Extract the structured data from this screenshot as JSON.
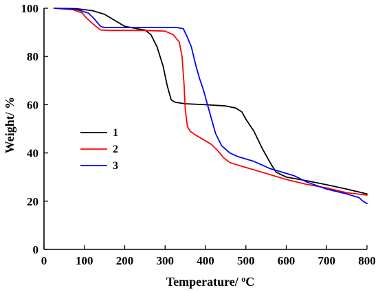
{
  "chart_data": {
    "type": "line",
    "xlabel": "Temperature/ ",
    "xlabel_unit_sup": "o",
    "xlabel_unit": "C",
    "ylabel": "Weight/ %",
    "xlim": [
      0,
      800
    ],
    "ylim": [
      0,
      100
    ],
    "x_ticks": [
      0,
      100,
      200,
      300,
      400,
      500,
      600,
      700,
      800
    ],
    "y_ticks": [
      0,
      20,
      40,
      60,
      80,
      100
    ],
    "x_tick_labels": [
      "0",
      "100",
      "200",
      "300",
      "400",
      "500",
      "600",
      "700",
      "800"
    ],
    "y_tick_labels": [
      "0",
      "20",
      "40",
      "60",
      "80",
      "100"
    ],
    "grid": false,
    "legend_position": "middle-left",
    "series": [
      {
        "name": "1",
        "color": "#000000",
        "points": [
          [
            25,
            100
          ],
          [
            80,
            99.8
          ],
          [
            120,
            99
          ],
          [
            150,
            97.5
          ],
          [
            175,
            95
          ],
          [
            200,
            92.5
          ],
          [
            230,
            91.5
          ],
          [
            250,
            91
          ],
          [
            265,
            89
          ],
          [
            280,
            84
          ],
          [
            295,
            76
          ],
          [
            305,
            68
          ],
          [
            315,
            62
          ],
          [
            325,
            61
          ],
          [
            350,
            60.4
          ],
          [
            400,
            60
          ],
          [
            450,
            59.5
          ],
          [
            475,
            58.6
          ],
          [
            490,
            57
          ],
          [
            500,
            54
          ],
          [
            520,
            49
          ],
          [
            540,
            42
          ],
          [
            560,
            36
          ],
          [
            575,
            32
          ],
          [
            600,
            30
          ],
          [
            650,
            28.5
          ],
          [
            700,
            26.8
          ],
          [
            750,
            25
          ],
          [
            800,
            23
          ]
        ]
      },
      {
        "name": "2",
        "color": "#ff0000",
        "points": [
          [
            25,
            100
          ],
          [
            70,
            99.5
          ],
          [
            95,
            98
          ],
          [
            105,
            96
          ],
          [
            125,
            93
          ],
          [
            140,
            91
          ],
          [
            160,
            90.8
          ],
          [
            200,
            90.8
          ],
          [
            250,
            90.8
          ],
          [
            300,
            90.5
          ],
          [
            320,
            89
          ],
          [
            335,
            86
          ],
          [
            342,
            80
          ],
          [
            347,
            68
          ],
          [
            350,
            58
          ],
          [
            355,
            51
          ],
          [
            362,
            49
          ],
          [
            375,
            47.5
          ],
          [
            395,
            45.5
          ],
          [
            415,
            43.5
          ],
          [
            430,
            41
          ],
          [
            445,
            38
          ],
          [
            460,
            36
          ],
          [
            480,
            35
          ],
          [
            500,
            34
          ],
          [
            520,
            33
          ],
          [
            550,
            31.5
          ],
          [
            600,
            29
          ],
          [
            650,
            27
          ],
          [
            700,
            25.5
          ],
          [
            750,
            23.5
          ],
          [
            800,
            22.5
          ]
        ]
      },
      {
        "name": "3",
        "color": "#0000ff",
        "points": [
          [
            25,
            100
          ],
          [
            80,
            99.5
          ],
          [
            110,
            98
          ],
          [
            125,
            95.5
          ],
          [
            140,
            92.5
          ],
          [
            150,
            92
          ],
          [
            200,
            92
          ],
          [
            250,
            92
          ],
          [
            300,
            92
          ],
          [
            330,
            92
          ],
          [
            345,
            91.5
          ],
          [
            355,
            88
          ],
          [
            365,
            84
          ],
          [
            375,
            77
          ],
          [
            385,
            71
          ],
          [
            395,
            66
          ],
          [
            405,
            60
          ],
          [
            415,
            54
          ],
          [
            425,
            48
          ],
          [
            440,
            43
          ],
          [
            460,
            40
          ],
          [
            480,
            38.5
          ],
          [
            500,
            37.5
          ],
          [
            520,
            36.5
          ],
          [
            540,
            35
          ],
          [
            560,
            33.5
          ],
          [
            580,
            32.5
          ],
          [
            600,
            31.5
          ],
          [
            620,
            30.5
          ],
          [
            650,
            28
          ],
          [
            700,
            25
          ],
          [
            750,
            23
          ],
          [
            780,
            21.5
          ],
          [
            790,
            20
          ],
          [
            800,
            19
          ]
        ]
      }
    ]
  }
}
